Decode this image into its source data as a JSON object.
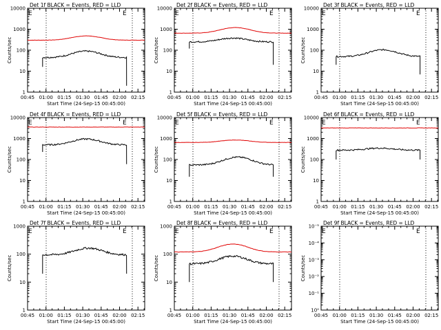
{
  "colors": {
    "events": "#000000",
    "lld": "#e00000",
    "axis": "#000000",
    "background": "#ffffff"
  },
  "chart_data": [
    {
      "type": "line",
      "title": "Det 1f  BLACK = Events, RED = LLD",
      "xlabel": "Start Time (24-Sep-15 00:45:00)",
      "ylabel": "Counts/sec",
      "x_ticks": [
        "00:45",
        "01:00",
        "01:15",
        "01:30",
        "01:45",
        "02:00",
        "02:15"
      ],
      "y_ticks": [
        "1",
        "10",
        "100",
        "1000",
        "10000"
      ],
      "ylim": [
        1,
        10000
      ],
      "log_y": true,
      "markers": {
        "left": "E",
        "right": "E"
      },
      "events": {
        "shape": "hump",
        "t_start": 0.128,
        "t_end": 0.845,
        "base": 45,
        "peak": 90,
        "peak_at": 0.5,
        "first": 16,
        "last": 2
      },
      "lld": {
        "shape": "hump_full",
        "t_start": 0.0,
        "t_end": 1.0,
        "base": 300,
        "peak": 480,
        "peak_at": 0.5
      }
    },
    {
      "type": "line",
      "title": "Det 2f  BLACK = Events, RED = LLD",
      "xlabel": "Start Time (24-Sep-15 00:45:00)",
      "ylabel": "Counts/sec",
      "x_ticks": [
        "00:45",
        "01:00",
        "01:15",
        "01:30",
        "01:45",
        "02:00",
        "02:15"
      ],
      "y_ticks": [
        "1",
        "10",
        "100",
        "1000",
        "10000"
      ],
      "ylim": [
        1,
        10000
      ],
      "log_y": true,
      "markers": {
        "left": "E",
        "right": "E"
      },
      "events": {
        "shape": "hump",
        "t_start": 0.128,
        "t_end": 0.845,
        "base": 250,
        "peak": 380,
        "peak_at": 0.5,
        "first": 120,
        "last": 20
      },
      "lld": {
        "shape": "hump_full",
        "t_start": 0.0,
        "t_end": 1.0,
        "base": 650,
        "peak": 1200,
        "peak_at": 0.52
      }
    },
    {
      "type": "line",
      "title": "Det 3f  BLACK = Events, RED = LLD",
      "xlabel": "Start Time (24-Sep-15 00:45:00)",
      "ylabel": "Counts/sec",
      "x_ticks": [
        "00:45",
        "01:00",
        "01:15",
        "01:30",
        "01:45",
        "02:00",
        "02:15"
      ],
      "y_ticks": [
        "1",
        "10",
        "100",
        "1000",
        "10000"
      ],
      "ylim": [
        1,
        10000
      ],
      "log_y": true,
      "markers": {
        "left": "E",
        "right": "E"
      },
      "events": {
        "shape": "hump",
        "t_start": 0.128,
        "t_end": 0.845,
        "base": 50,
        "peak": 105,
        "peak_at": 0.53,
        "first": 20,
        "last": 7
      },
      "lld": null
    },
    {
      "type": "line",
      "title": "Det 4f  BLACK = Events, RED = LLD",
      "xlabel": "Start Time (24-Sep-15 00:45:00)",
      "ylabel": "Counts/sec",
      "x_ticks": [
        "00:45",
        "01:00",
        "01:15",
        "01:30",
        "01:45",
        "02:00",
        "02:15"
      ],
      "y_ticks": [
        "1",
        "10",
        "100",
        "1000",
        "10000"
      ],
      "ylim": [
        1,
        10000
      ],
      "log_y": true,
      "markers": {
        "left": "E",
        "right": "E"
      },
      "events": {
        "shape": "hump",
        "t_start": 0.128,
        "t_end": 0.845,
        "base": 500,
        "peak": 950,
        "peak_at": 0.5,
        "first": 230,
        "last": 60
      },
      "lld": {
        "shape": "flat",
        "t_start": 0.0,
        "t_end": 1.0,
        "base": 3500,
        "peak": 3500,
        "peak_at": 0.5
      }
    },
    {
      "type": "line",
      "title": "Det 5f  BLACK = Events, RED = LLD",
      "xlabel": "Start Time (24-Sep-15 00:45:00)",
      "ylabel": "Counts/sec",
      "x_ticks": [
        "00:45",
        "01:00",
        "01:15",
        "01:30",
        "01:45",
        "02:00",
        "02:15"
      ],
      "y_ticks": [
        "1",
        "10",
        "100",
        "1000",
        "10000"
      ],
      "ylim": [
        1,
        10000
      ],
      "log_y": true,
      "markers": {
        "left": "E",
        "right": "E"
      },
      "events": {
        "shape": "hump",
        "t_start": 0.128,
        "t_end": 0.845,
        "base": 55,
        "peak": 130,
        "peak_at": 0.54,
        "first": 15,
        "last": 15
      },
      "lld": {
        "shape": "hump_full",
        "t_start": 0.0,
        "t_end": 1.0,
        "base": 650,
        "peak": 850,
        "peak_at": 0.52
      }
    },
    {
      "type": "line",
      "title": "Det 6f  BLACK = Events, RED = LLD",
      "xlabel": "Start Time (24-Sep-15 00:45:00)",
      "ylabel": "Counts/sec",
      "x_ticks": [
        "00:45",
        "01:00",
        "01:15",
        "01:30",
        "01:45",
        "02:00",
        "02:15"
      ],
      "y_ticks": [
        "1",
        "10",
        "100",
        "1000",
        "10000"
      ],
      "ylim": [
        1,
        10000
      ],
      "log_y": true,
      "markers": {
        "left": "E",
        "right": "E"
      },
      "events": {
        "shape": "hump",
        "t_start": 0.128,
        "t_end": 0.845,
        "base": 280,
        "peak": 350,
        "peak_at": 0.5,
        "first": 100,
        "last": 100
      },
      "lld": {
        "shape": "flat",
        "t_start": 0.0,
        "t_end": 1.0,
        "base": 3200,
        "peak": 3200,
        "peak_at": 0.5
      }
    },
    {
      "type": "line",
      "title": "Det 7f  BLACK = Events, RED = LLD",
      "xlabel": "Start Time (24-Sep-15 00:45:00)",
      "ylabel": "Counts/sec",
      "x_ticks": [
        "00:45",
        "01:00",
        "01:15",
        "01:30",
        "01:45",
        "02:00",
        "02:15"
      ],
      "y_ticks": [
        "1",
        "10",
        "100",
        "1000"
      ],
      "ylim": [
        1,
        1000
      ],
      "log_y": true,
      "markers": {
        "left": "E",
        "right": "E"
      },
      "events": {
        "shape": "hump",
        "t_start": 0.128,
        "t_end": 0.845,
        "base": 95,
        "peak": 165,
        "peak_at": 0.52,
        "first": 20,
        "last": 20
      },
      "lld": null
    },
    {
      "type": "line",
      "title": "Det 8f  BLACK = Events, RED = LLD",
      "xlabel": "Start Time (24-Sep-15 00:45:00)",
      "ylabel": "Counts/sec",
      "x_ticks": [
        "00:45",
        "01:00",
        "01:15",
        "01:30",
        "01:45",
        "02:00",
        "02:15"
      ],
      "y_ticks": [
        "1",
        "10",
        "100",
        "1000"
      ],
      "ylim": [
        1,
        1000
      ],
      "log_y": true,
      "markers": {
        "left": "E",
        "right": "E"
      },
      "events": {
        "shape": "hump",
        "t_start": 0.128,
        "t_end": 0.845,
        "base": 45,
        "peak": 85,
        "peak_at": 0.5,
        "first": 10,
        "last": 10
      },
      "lld": {
        "shape": "hump_full",
        "t_start": 0.0,
        "t_end": 1.0,
        "base": 120,
        "peak": 230,
        "peak_at": 0.5
      }
    },
    {
      "type": "line",
      "title": "Det 9f  BLACK = Events, RED = LLD",
      "xlabel": "Start Time (24-Sep-15 00:45:00)",
      "ylabel": "Counts/sec",
      "x_ticks": [
        "00:45",
        "01:00",
        "01:15",
        "01:30",
        "01:45",
        "02:00",
        "02:15"
      ],
      "y_ticks": [
        "10⁰",
        "10⁻¹",
        "10⁻²",
        "10⁻³",
        "10⁻⁴",
        "10⁻⁵"
      ],
      "ylim": [
        1e-05,
        1
      ],
      "log_y": true,
      "markers": {
        "left": "E",
        "right": "E"
      },
      "events": null,
      "lld": null
    }
  ]
}
